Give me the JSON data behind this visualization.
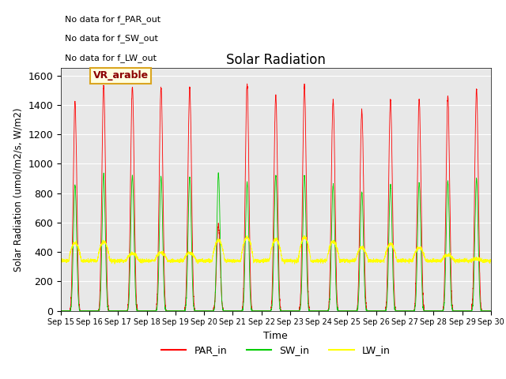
{
  "title": "Solar Radiation",
  "xlabel": "Time",
  "ylabel": "Solar Radiation (umol/m2/s, W/m2)",
  "ylim": [
    0,
    1650
  ],
  "n_days": 15,
  "annotations_topleft": [
    "No data for f_PAR_out",
    "No data for f_SW_out",
    "No data for f_LW_out"
  ],
  "vr_label": "VR_arable",
  "xtick_labels": [
    "Sep 15",
    "Sep 16",
    "Sep 17",
    "Sep 18",
    "Sep 19",
    "Sep 20",
    "Sep 21",
    "Sep 22",
    "Sep 23",
    "Sep 24",
    "Sep 25",
    "Sep 26",
    "Sep 27",
    "Sep 28",
    "Sep 29",
    "Sep 30"
  ],
  "background_color": "#e8e8e8",
  "par_color": "red",
  "sw_color": "#00cc00",
  "lw_color": "yellow",
  "par_peaks": [
    1420,
    1540,
    1520,
    1520,
    1520,
    580,
    1540,
    1460,
    1530,
    1430,
    1360,
    1440,
    1440,
    1460,
    1500
  ],
  "sw_peaks": [
    850,
    930,
    920,
    910,
    910,
    930,
    870,
    920,
    920,
    855,
    810,
    860,
    870,
    880,
    900
  ],
  "lw_base": 380,
  "lw_day_peaks": [
    460,
    470,
    390,
    395,
    395,
    480,
    500,
    490,
    500,
    470,
    430,
    455,
    430,
    380,
    350
  ],
  "lw_night": 340
}
